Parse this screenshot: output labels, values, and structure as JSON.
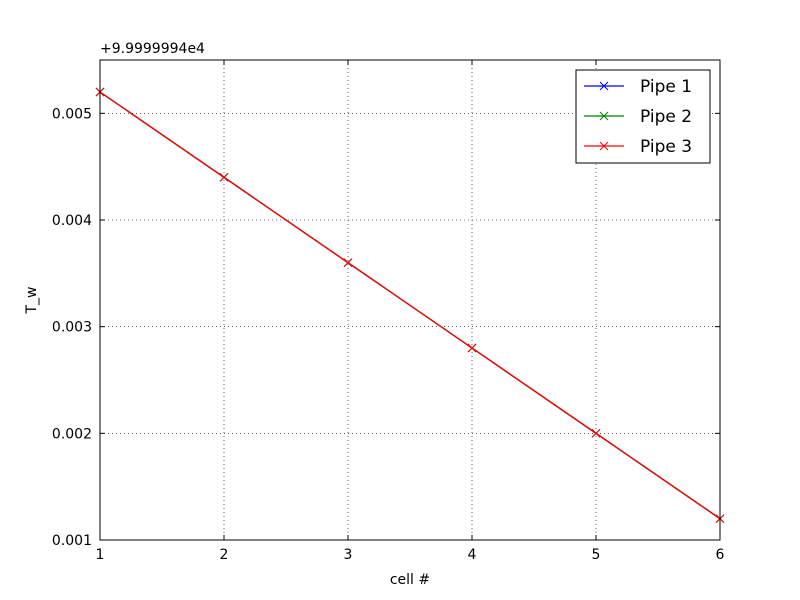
{
  "chart_data": {
    "type": "line",
    "xlabel": "cell #",
    "ylabel": "T_w",
    "offset_label": "+9.9999994e4",
    "x": [
      1,
      2,
      3,
      4,
      5,
      6
    ],
    "xlim": [
      1,
      6
    ],
    "ylim": [
      0.001,
      0.0055
    ],
    "xticks": [
      "1",
      "2",
      "3",
      "4",
      "5",
      "6"
    ],
    "yticks": [
      "0.001",
      "0.002",
      "0.003",
      "0.004",
      "0.005"
    ],
    "ytick_values": [
      0.001,
      0.002,
      0.003,
      0.004,
      0.005
    ],
    "xtick_values": [
      1,
      2,
      3,
      4,
      5,
      6
    ],
    "grid": true,
    "legend_position": "top-right",
    "marker": "x",
    "series": [
      {
        "name": "Pipe 1",
        "color": "#0000ff",
        "values": [
          0.0052,
          0.0044,
          0.0036,
          0.0028,
          0.002,
          0.0012
        ]
      },
      {
        "name": "Pipe 2",
        "color": "#008000",
        "values": [
          0.0052,
          0.0044,
          0.0036,
          0.0028,
          0.002,
          0.0012
        ]
      },
      {
        "name": "Pipe 3",
        "color": "#ff0000",
        "values": [
          0.0052,
          0.0044,
          0.0036,
          0.0028,
          0.002,
          0.0012
        ]
      }
    ]
  }
}
